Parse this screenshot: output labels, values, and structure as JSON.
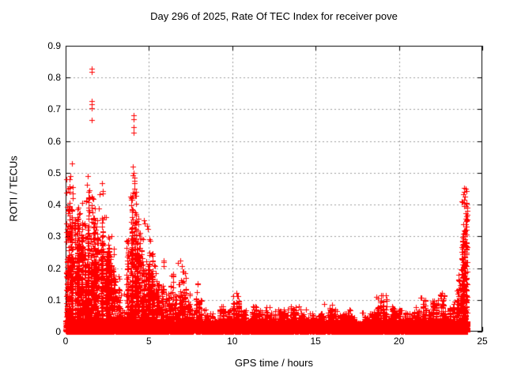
{
  "chart_data": {
    "type": "scatter",
    "title": "Day 296 of 2025, Rate Of TEC Index for receiver pove",
    "xlabel": "GPS time / hours",
    "ylabel": "ROTI / TECUs",
    "xlim": [
      0,
      25
    ],
    "ylim": [
      0,
      0.9
    ],
    "xticks": [
      0,
      5,
      10,
      15,
      20,
      25
    ],
    "xtick_labels": [
      "0",
      "5",
      "10",
      "15",
      "20",
      "25"
    ],
    "yticks": [
      0,
      0.1,
      0.2,
      0.3,
      0.4,
      0.5,
      0.6,
      0.7,
      0.8,
      0.9
    ],
    "ytick_labels": [
      "0",
      "0.1",
      "0.2",
      "0.3",
      "0.4",
      "0.5",
      "0.6",
      "0.7",
      "0.8",
      "0.9"
    ],
    "grid": {
      "show": true,
      "style": "dotted",
      "color": "#9c9c9c",
      "at_x": [
        5,
        10,
        15,
        20
      ],
      "at_y": [
        0.1,
        0.2,
        0.3,
        0.4,
        0.5,
        0.6,
        0.7,
        0.8
      ]
    },
    "frame_color": "#000000",
    "marker": {
      "shape": "plus",
      "color": "#ff0000",
      "size": 7
    },
    "series_name": "ROTI",
    "seed": 20250296,
    "density_bins": [
      [
        0.0,
        0.25,
        0.46,
        300
      ],
      [
        0.25,
        0.5,
        0.44,
        300
      ],
      [
        0.5,
        0.75,
        0.4,
        280
      ],
      [
        0.75,
        1.0,
        0.38,
        260
      ],
      [
        1.0,
        1.25,
        0.42,
        280
      ],
      [
        1.25,
        1.5,
        0.46,
        300
      ],
      [
        1.5,
        1.75,
        0.43,
        300
      ],
      [
        1.75,
        2.0,
        0.4,
        290
      ],
      [
        2.0,
        2.25,
        0.44,
        290
      ],
      [
        2.25,
        2.5,
        0.38,
        270
      ],
      [
        2.5,
        2.75,
        0.32,
        240
      ],
      [
        2.75,
        3.0,
        0.26,
        210
      ],
      [
        3.0,
        3.25,
        0.18,
        170
      ],
      [
        3.25,
        3.54,
        0.12,
        150
      ],
      [
        3.54,
        3.64,
        0.03,
        10
      ],
      [
        3.64,
        3.75,
        0.3,
        100
      ],
      [
        3.75,
        4.0,
        0.44,
        260
      ],
      [
        4.0,
        4.25,
        0.5,
        280
      ],
      [
        4.25,
        4.5,
        0.36,
        260
      ],
      [
        4.5,
        4.75,
        0.3,
        240
      ],
      [
        4.75,
        5.0,
        0.34,
        240
      ],
      [
        5.0,
        5.25,
        0.3,
        220
      ],
      [
        5.25,
        5.5,
        0.22,
        200
      ],
      [
        5.5,
        5.75,
        0.15,
        170
      ],
      [
        5.75,
        6.0,
        0.22,
        170
      ],
      [
        6.0,
        6.25,
        0.12,
        160
      ],
      [
        6.25,
        6.5,
        0.19,
        160
      ],
      [
        6.5,
        6.75,
        0.12,
        160
      ],
      [
        6.75,
        7.0,
        0.22,
        160
      ],
      [
        7.0,
        7.25,
        0.19,
        150
      ],
      [
        7.25,
        7.5,
        0.12,
        150
      ],
      [
        7.5,
        7.7,
        0.07,
        100
      ],
      [
        7.7,
        7.82,
        0.02,
        8
      ],
      [
        7.82,
        8.0,
        0.16,
        120
      ],
      [
        8.0,
        8.25,
        0.1,
        140
      ],
      [
        8.25,
        8.5,
        0.07,
        140
      ],
      [
        8.5,
        9.0,
        0.06,
        280
      ],
      [
        9.0,
        9.5,
        0.08,
        280
      ],
      [
        9.5,
        10.0,
        0.07,
        280
      ],
      [
        10.0,
        10.5,
        0.12,
        280
      ],
      [
        10.5,
        11.0,
        0.07,
        280
      ],
      [
        11.0,
        11.5,
        0.08,
        280
      ],
      [
        11.5,
        12.0,
        0.07,
        280
      ],
      [
        12.0,
        12.5,
        0.08,
        280
      ],
      [
        12.5,
        13.0,
        0.07,
        280
      ],
      [
        13.0,
        13.5,
        0.07,
        280
      ],
      [
        13.5,
        14.0,
        0.08,
        280
      ],
      [
        14.0,
        14.5,
        0.07,
        280
      ],
      [
        14.5,
        15.0,
        0.06,
        280
      ],
      [
        15.0,
        15.5,
        0.06,
        280
      ],
      [
        15.5,
        16.0,
        0.09,
        280
      ],
      [
        16.0,
        16.5,
        0.07,
        280
      ],
      [
        16.5,
        17.0,
        0.06,
        280
      ],
      [
        17.0,
        17.5,
        0.07,
        280
      ],
      [
        17.5,
        18.0,
        0.06,
        280
      ],
      [
        18.0,
        18.5,
        0.06,
        280
      ],
      [
        18.5,
        19.0,
        0.11,
        280
      ],
      [
        19.0,
        19.25,
        0.12,
        140
      ],
      [
        19.25,
        19.75,
        0.08,
        280
      ],
      [
        19.75,
        20.25,
        0.07,
        280
      ],
      [
        20.25,
        20.75,
        0.06,
        280
      ],
      [
        20.75,
        21.25,
        0.08,
        280
      ],
      [
        21.25,
        21.5,
        0.11,
        140
      ],
      [
        21.5,
        22.0,
        0.1,
        280
      ],
      [
        22.0,
        22.5,
        0.1,
        280
      ],
      [
        22.5,
        22.75,
        0.12,
        140
      ],
      [
        22.75,
        23.25,
        0.08,
        280
      ],
      [
        23.25,
        23.5,
        0.1,
        150
      ],
      [
        23.5,
        23.75,
        0.2,
        160
      ],
      [
        23.75,
        24.0,
        0.42,
        280
      ],
      [
        24.0,
        24.12,
        0.45,
        150
      ]
    ],
    "outlier_points": [
      [
        1.57,
        0.828
      ],
      [
        1.585,
        0.818
      ],
      [
        1.57,
        0.726
      ],
      [
        1.575,
        0.716
      ],
      [
        1.58,
        0.704
      ],
      [
        1.572,
        0.666
      ],
      [
        4.08,
        0.681
      ],
      [
        4.09,
        0.669
      ],
      [
        4.085,
        0.644
      ],
      [
        4.092,
        0.627
      ],
      [
        4.02,
        0.52
      ],
      [
        4.06,
        0.5
      ],
      [
        0.4,
        0.53
      ],
      [
        0.3,
        0.49
      ],
      [
        0.26,
        0.48
      ],
      [
        0.05,
        0.48
      ],
      [
        0.42,
        0.455
      ],
      [
        1.32,
        0.49
      ],
      [
        1.3,
        0.462
      ],
      [
        2.18,
        0.468
      ],
      [
        2.22,
        0.442
      ],
      [
        4.7,
        0.35
      ],
      [
        4.75,
        0.34
      ],
      [
        5.9,
        0.225
      ],
      [
        6.9,
        0.225
      ],
      [
        7.05,
        0.19
      ],
      [
        10.25,
        0.122
      ],
      [
        10.28,
        0.112
      ],
      [
        18.95,
        0.115
      ],
      [
        21.35,
        0.108
      ],
      [
        22.6,
        0.122
      ],
      [
        23.9,
        0.452
      ],
      [
        23.92,
        0.44
      ],
      [
        23.88,
        0.432
      ],
      [
        23.94,
        0.424
      ],
      [
        23.9,
        0.414
      ],
      [
        23.93,
        0.405
      ],
      [
        23.89,
        0.396
      ],
      [
        23.97,
        0.31
      ],
      [
        23.96,
        0.3
      ],
      [
        23.98,
        0.29
      ]
    ]
  }
}
